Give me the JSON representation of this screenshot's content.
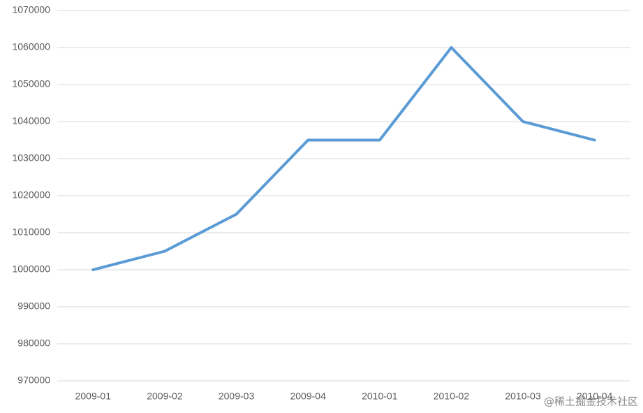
{
  "chart_data": {
    "type": "line",
    "categories": [
      "2009-01",
      "2009-02",
      "2009-03",
      "2009-04",
      "2010-01",
      "2010-02",
      "2010-03",
      "2010-04"
    ],
    "values": [
      1000000,
      1005000,
      1015000,
      1035000,
      1035000,
      1060000,
      1040000,
      1035000
    ],
    "color": "#5b9bd5",
    "ylim": [
      970000,
      1070000
    ],
    "yticks": [
      970000,
      980000,
      990000,
      1000000,
      1010000,
      1020000,
      1030000,
      1040000,
      1050000,
      1060000,
      1070000
    ],
    "grid": true,
    "watermark": "@稀土掘金技术社区"
  }
}
